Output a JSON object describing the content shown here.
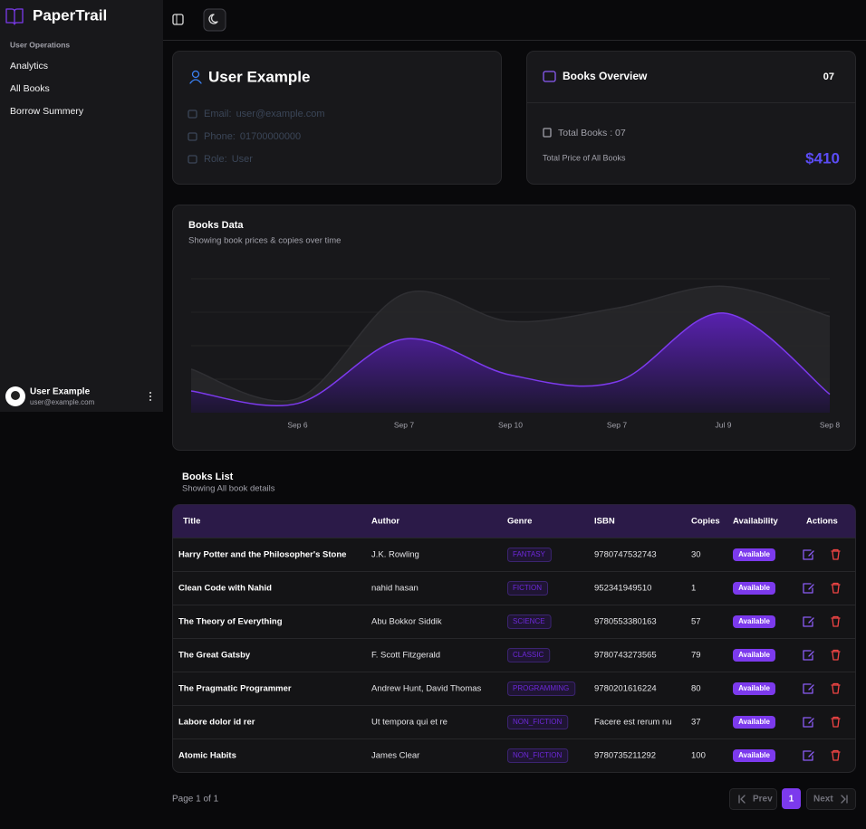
{
  "sidebar": {
    "brand": "PaperTrail",
    "section": "User Operations",
    "menu": [
      "Analytics",
      "All Books",
      "Borrow Summery"
    ],
    "user": {
      "name": "User Example",
      "email": "user@example.com"
    }
  },
  "profile": {
    "name": "User Example",
    "fields": [
      {
        "label": "Email:",
        "value": "user@example.com"
      },
      {
        "label": "Phone:",
        "value": "01700000000"
      },
      {
        "label": "Role:",
        "value": "User"
      }
    ]
  },
  "overview": {
    "title": "Books Overview",
    "count": "07",
    "total_books": "Total Books : 07",
    "total_price_label": "Total Price of All Books",
    "total_price": "$410"
  },
  "chart_data": {
    "type": "area",
    "title": "Books Data",
    "subtitle": "Showing book prices & copies over time",
    "categories": [
      null,
      "Sep 6",
      "Sep 7",
      "Sep 10",
      "Sep 7",
      "Jul 9",
      "Sep 8"
    ],
    "ylim": [
      0,
      160
    ],
    "yticks": [
      40,
      80,
      120,
      160
    ],
    "grid": true,
    "series": [
      {
        "color": "#27272a",
        "values": [
          52,
          17,
          142,
          109,
          125,
          151,
          115
        ]
      },
      {
        "color": "#7c3aed",
        "values": [
          26,
          11,
          88,
          45,
          37,
          119,
          22
        ]
      }
    ]
  },
  "table": {
    "title": "Books List",
    "subtitle": "Showing All book details",
    "columns": [
      "Title",
      "Author",
      "Genre",
      "ISBN",
      "Copies",
      "Availability",
      "Actions"
    ],
    "rows": [
      [
        "Harry Potter and the Philosopher's Stone",
        "J.K. Rowling",
        "FANTASY",
        "9780747532743",
        30,
        "Available"
      ],
      [
        "Clean Code with Nahid",
        "nahid hasan",
        "FICTION",
        "952341949510",
        1,
        "Available"
      ],
      [
        "The Theory of Everything",
        "Abu Bokkor Siddik",
        "SCIENCE",
        "9780553380163",
        57,
        "Available"
      ],
      [
        "The Great Gatsby",
        "F. Scott Fitzgerald",
        "CLASSIC",
        "9780743273565",
        79,
        "Available"
      ],
      [
        "The Pragmatic Programmer",
        "Andrew Hunt, David Thomas",
        "PROGRAMMING",
        "9780201616224",
        80,
        "Available"
      ],
      [
        "Labore dolor id rer",
        "Ut tempora qui et re",
        "NON_FICTION",
        "Facere est rerum nu",
        37,
        "Available"
      ],
      [
        "Atomic Habits",
        "James Clear",
        "NON_FICTION",
        "9780735211292",
        100,
        "Available"
      ]
    ]
  },
  "pagination": {
    "page_label": "Page 1 of 1",
    "prev": "Prev",
    "current": 1,
    "next": "Next"
  }
}
